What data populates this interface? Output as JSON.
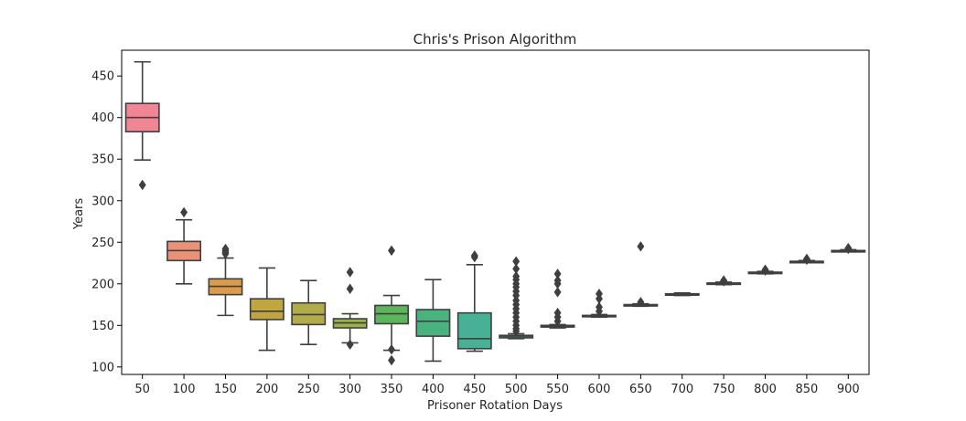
{
  "chart_data": {
    "type": "box",
    "title": "Chris's Prison Algorithm",
    "xlabel": "Prisoner Rotation Days",
    "ylabel": "Years",
    "ylim": [
      91,
      481
    ],
    "yticks": [
      100,
      150,
      200,
      250,
      300,
      350,
      400,
      450
    ],
    "grid": false,
    "categories": [
      "50",
      "100",
      "150",
      "200",
      "250",
      "300",
      "350",
      "400",
      "450",
      "500",
      "550",
      "600",
      "650",
      "700",
      "750",
      "800",
      "850",
      "900"
    ],
    "boxes": [
      {
        "category": "50",
        "whislo": 349,
        "q1": 383,
        "med": 400,
        "q3": 417,
        "whishi": 467,
        "fliers": [
          319
        ],
        "color": "#f08594"
      },
      {
        "category": "100",
        "whislo": 200,
        "q1": 228,
        "med": 240,
        "q3": 251,
        "whishi": 277,
        "fliers": [
          286
        ],
        "color": "#ea9179"
      },
      {
        "category": "150",
        "whislo": 162,
        "q1": 187,
        "med": 197,
        "q3": 206,
        "whishi": 231,
        "fliers": [
          236,
          238,
          240,
          242
        ],
        "color": "#dc9c4d"
      },
      {
        "category": "200",
        "whislo": 120,
        "q1": 157,
        "med": 167,
        "q3": 182,
        "whishi": 219,
        "fliers": [],
        "color": "#c1a541"
      },
      {
        "category": "250",
        "whislo": 127,
        "q1": 151,
        "med": 163,
        "q3": 177,
        "whishi": 204,
        "fliers": [],
        "color": "#b1ab4a"
      },
      {
        "category": "300",
        "whislo": 129,
        "q1": 147,
        "med": 153,
        "q3": 158,
        "whishi": 164,
        "fliers": [
          127,
          194,
          214
        ],
        "color": "#99b347"
      },
      {
        "category": "350",
        "whislo": 120,
        "q1": 152,
        "med": 164,
        "q3": 174,
        "whishi": 186,
        "fliers": [
          108,
          121,
          240
        ],
        "color": "#5bb55a"
      },
      {
        "category": "400",
        "whislo": 107,
        "q1": 137,
        "med": 155,
        "q3": 169,
        "whishi": 205,
        "fliers": [],
        "color": "#4ab27e"
      },
      {
        "category": "450",
        "whislo": 119,
        "q1": 122,
        "med": 134,
        "q3": 165,
        "whishi": 223,
        "fliers": [
          232,
          234
        ],
        "color": "#48b095"
      },
      {
        "category": "500",
        "whislo": 134,
        "q1": 135,
        "med": 137,
        "q3": 138,
        "whishi": 140,
        "fliers": [
          143,
          146,
          150,
          155,
          160,
          165,
          170,
          175,
          180,
          186,
          191,
          196,
          200,
          205,
          209,
          218,
          227
        ],
        "color": "#4aafaa"
      },
      {
        "category": "550",
        "whislo": 147,
        "q1": 148,
        "med": 149,
        "q3": 150,
        "whishi": 151,
        "fliers": [
          155,
          160,
          165,
          190,
          200,
          204,
          212
        ],
        "color": "#4cacbf"
      },
      {
        "category": "600",
        "whislo": 160,
        "q1": 161,
        "med": 161,
        "q3": 162,
        "whishi": 163,
        "fliers": [
          167,
          172,
          182,
          188
        ],
        "color": "#52a8d2"
      },
      {
        "category": "650",
        "whislo": 173,
        "q1": 174,
        "med": 174,
        "q3": 175,
        "whishi": 176,
        "fliers": [
          178,
          245
        ],
        "color": "#5fa2e2"
      },
      {
        "category": "700",
        "whislo": 186,
        "q1": 187,
        "med": 187,
        "q3": 188,
        "whishi": 189,
        "fliers": [],
        "color": "#8f9cea"
      },
      {
        "category": "750",
        "whislo": 199,
        "q1": 200,
        "med": 200,
        "q3": 201,
        "whishi": 202,
        "fliers": [
          203,
          204
        ],
        "color": "#b08ff0"
      },
      {
        "category": "800",
        "whislo": 212,
        "q1": 213,
        "med": 213,
        "q3": 214,
        "whishi": 215,
        "fliers": [
          216,
          217
        ],
        "color": "#cf85ed"
      },
      {
        "category": "850",
        "whislo": 226,
        "q1": 226,
        "med": 227,
        "q3": 227,
        "whishi": 228,
        "fliers": [
          229,
          230
        ],
        "color": "#e27fd7"
      },
      {
        "category": "900",
        "whislo": 239,
        "q1": 239,
        "med": 240,
        "q3": 240,
        "whishi": 241,
        "fliers": [
          242,
          243
        ],
        "color": "#ea83bd"
      }
    ]
  }
}
